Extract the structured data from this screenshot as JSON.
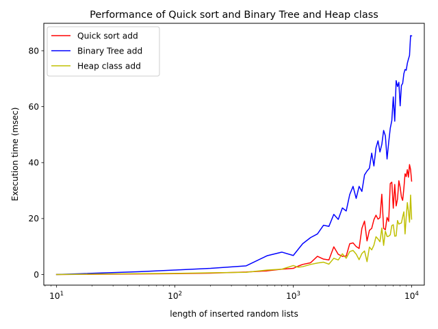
{
  "chart_data": {
    "type": "line",
    "title": "Performance of Quick sort and Binary Tree and Heap class",
    "xlabel": "length of inserted random lists",
    "ylabel": "Execution time (msec)",
    "x_scale": "log",
    "xlim": [
      7.8,
      12800
    ],
    "ylim": [
      -3.8,
      89.8
    ],
    "x_ticks": [
      {
        "value": 10,
        "base": "10",
        "exp": "1"
      },
      {
        "value": 100,
        "base": "10",
        "exp": "2"
      },
      {
        "value": 1000,
        "base": "10",
        "exp": "3"
      },
      {
        "value": 10000,
        "base": "10",
        "exp": "4"
      }
    ],
    "y_ticks": [
      {
        "value": 0,
        "label": "0"
      },
      {
        "value": 20,
        "label": "20"
      },
      {
        "value": 40,
        "label": "40"
      },
      {
        "value": 60,
        "label": "60"
      },
      {
        "value": 80,
        "label": "80"
      }
    ],
    "grid": false,
    "legend_position": "upper left",
    "series": [
      {
        "name": "Quick sort add",
        "color": "#ff0000",
        "points": [
          [
            10,
            0.0
          ],
          [
            50,
            0.2
          ],
          [
            100,
            0.3
          ],
          [
            200,
            0.5
          ],
          [
            400,
            0.9
          ],
          [
            600,
            1.3
          ],
          [
            800,
            1.9
          ],
          [
            1000,
            2.2
          ],
          [
            1100,
            3.0
          ],
          [
            1200,
            3.6
          ],
          [
            1400,
            4.2
          ],
          [
            1600,
            6.5
          ],
          [
            1800,
            5.5
          ],
          [
            2000,
            5.2
          ],
          [
            2200,
            9.9
          ],
          [
            2400,
            7.2
          ],
          [
            2600,
            6.5
          ],
          [
            2800,
            6.6
          ],
          [
            3000,
            11.0
          ],
          [
            3200,
            11.3
          ],
          [
            3400,
            10.0
          ],
          [
            3600,
            9.3
          ],
          [
            3800,
            16.5
          ],
          [
            4000,
            19.1
          ],
          [
            4200,
            12.0
          ],
          [
            4400,
            15.8
          ],
          [
            4600,
            16.5
          ],
          [
            4800,
            19.6
          ],
          [
            5000,
            21.2
          ],
          [
            5200,
            19.8
          ],
          [
            5400,
            20.3
          ],
          [
            5600,
            28.7
          ],
          [
            5800,
            16.5
          ],
          [
            6000,
            16.0
          ],
          [
            6200,
            20.4
          ],
          [
            6400,
            19.0
          ],
          [
            6600,
            32.5
          ],
          [
            6800,
            33.0
          ],
          [
            7000,
            23.7
          ],
          [
            7200,
            32.2
          ],
          [
            7400,
            24.5
          ],
          [
            7600,
            27.0
          ],
          [
            7800,
            33.5
          ],
          [
            8000,
            31.2
          ],
          [
            8200,
            27.7
          ],
          [
            8400,
            26.5
          ],
          [
            8600,
            30.8
          ],
          [
            8800,
            36.0
          ],
          [
            9000,
            35.0
          ],
          [
            9200,
            37.5
          ],
          [
            9400,
            34.8
          ],
          [
            9600,
            39.3
          ],
          [
            9800,
            37.5
          ],
          [
            10000,
            33.4
          ]
        ]
      },
      {
        "name": "Binary Tree add",
        "color": "#0000ff",
        "points": [
          [
            10,
            0.0
          ],
          [
            50,
            1.0
          ],
          [
            100,
            1.6
          ],
          [
            200,
            2.2
          ],
          [
            400,
            3.1
          ],
          [
            600,
            6.7
          ],
          [
            800,
            8.0
          ],
          [
            1000,
            6.8
          ],
          [
            1100,
            9.0
          ],
          [
            1200,
            11.0
          ],
          [
            1400,
            13.2
          ],
          [
            1600,
            14.5
          ],
          [
            1800,
            17.6
          ],
          [
            2000,
            17.2
          ],
          [
            2200,
            21.5
          ],
          [
            2400,
            19.7
          ],
          [
            2600,
            23.8
          ],
          [
            2800,
            22.7
          ],
          [
            3000,
            28.6
          ],
          [
            3200,
            31.5
          ],
          [
            3400,
            27.2
          ],
          [
            3600,
            31.5
          ],
          [
            3800,
            29.7
          ],
          [
            4000,
            35.6
          ],
          [
            4200,
            37.0
          ],
          [
            4400,
            38.0
          ],
          [
            4600,
            43.4
          ],
          [
            4800,
            38.8
          ],
          [
            5000,
            45.3
          ],
          [
            5200,
            47.8
          ],
          [
            5400,
            43.8
          ],
          [
            5600,
            46.5
          ],
          [
            5800,
            51.5
          ],
          [
            6000,
            49.6
          ],
          [
            6200,
            41.3
          ],
          [
            6400,
            47.2
          ],
          [
            6600,
            52.3
          ],
          [
            6800,
            55.0
          ],
          [
            7000,
            63.5
          ],
          [
            7200,
            54.8
          ],
          [
            7400,
            69.3
          ],
          [
            7600,
            67.2
          ],
          [
            7800,
            68.7
          ],
          [
            8000,
            60.3
          ],
          [
            8200,
            67.6
          ],
          [
            8400,
            68.3
          ],
          [
            8600,
            71.8
          ],
          [
            8800,
            73.3
          ],
          [
            9000,
            73.0
          ],
          [
            9200,
            75.5
          ],
          [
            9400,
            77.0
          ],
          [
            9600,
            78.3
          ],
          [
            9800,
            85.4
          ],
          [
            10000,
            85.3
          ]
        ]
      },
      {
        "name": "Heap class add",
        "color": "#bfbf00",
        "points": [
          [
            10,
            0.0
          ],
          [
            50,
            0.3
          ],
          [
            100,
            0.4
          ],
          [
            200,
            0.6
          ],
          [
            400,
            0.8
          ],
          [
            600,
            1.6
          ],
          [
            800,
            1.9
          ],
          [
            1000,
            3.2
          ],
          [
            1100,
            2.6
          ],
          [
            1200,
            2.8
          ],
          [
            1400,
            3.6
          ],
          [
            1600,
            4.1
          ],
          [
            1800,
            4.4
          ],
          [
            2000,
            3.7
          ],
          [
            2200,
            5.8
          ],
          [
            2400,
            5.2
          ],
          [
            2600,
            7.4
          ],
          [
            2800,
            5.8
          ],
          [
            3000,
            8.2
          ],
          [
            3200,
            8.6
          ],
          [
            3400,
            7.3
          ],
          [
            3600,
            5.3
          ],
          [
            3800,
            7.5
          ],
          [
            4000,
            8.4
          ],
          [
            4200,
            4.6
          ],
          [
            4400,
            9.8
          ],
          [
            4600,
            8.8
          ],
          [
            4800,
            10.5
          ],
          [
            5000,
            13.5
          ],
          [
            5200,
            12.7
          ],
          [
            5400,
            11.7
          ],
          [
            5600,
            16.6
          ],
          [
            5800,
            10.4
          ],
          [
            6000,
            15.5
          ],
          [
            6200,
            13.6
          ],
          [
            6400,
            13.7
          ],
          [
            6600,
            14.2
          ],
          [
            6800,
            17.5
          ],
          [
            7000,
            17.8
          ],
          [
            7200,
            13.7
          ],
          [
            7400,
            13.8
          ],
          [
            7600,
            19.3
          ],
          [
            7800,
            18.0
          ],
          [
            8000,
            18.3
          ],
          [
            8200,
            18.4
          ],
          [
            8400,
            20.6
          ],
          [
            8600,
            22.4
          ],
          [
            8800,
            14.5
          ],
          [
            9000,
            20.5
          ],
          [
            9200,
            25.7
          ],
          [
            9400,
            22.5
          ],
          [
            9600,
            18.7
          ],
          [
            9800,
            28.4
          ],
          [
            10000,
            19.8
          ]
        ]
      }
    ]
  }
}
